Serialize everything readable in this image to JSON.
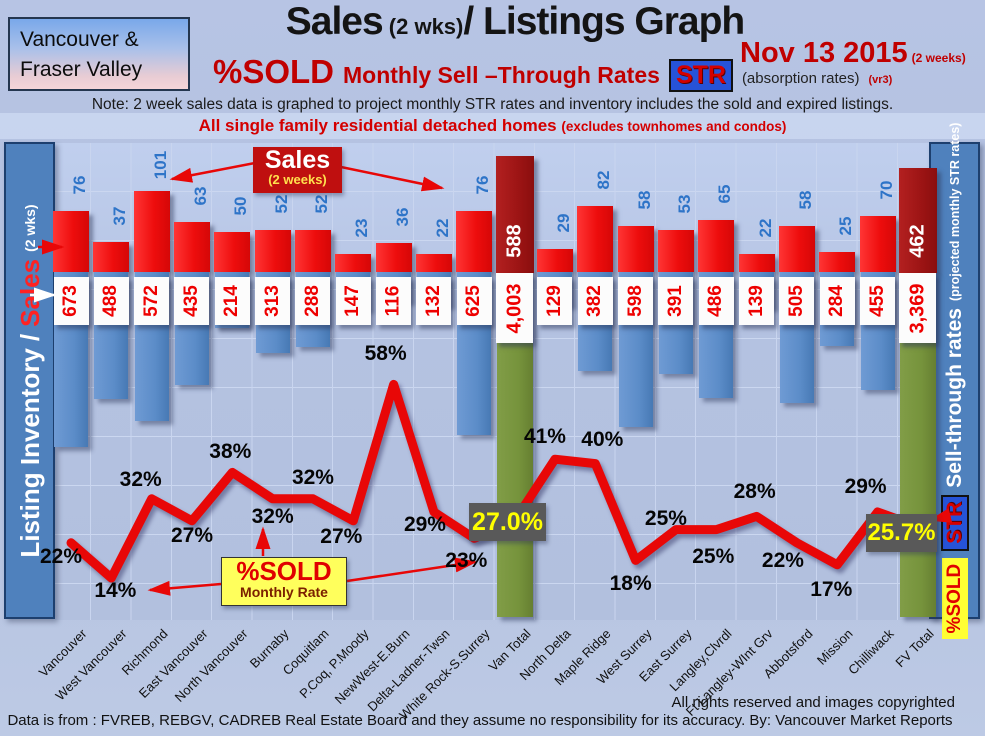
{
  "header": {
    "region_line1": "Vancouver &",
    "region_line2": "Fraser Valley",
    "title_main": "Sales",
    "title_sub": " (2 wks)",
    "title_rest": "/ Listings Graph",
    "date": "Nov 13 2015",
    "date_note": "(2 weeks)",
    "subtitle_pct": "%SOLD",
    "subtitle_text": "Monthly Sell –Through Rates",
    "subtitle_badge": "STR",
    "subtitle_tail": "(absorption rates)",
    "subtitle_ver": "(vr3)",
    "note": "Note: 2 week sales data is graphed to project monthly STR rates and inventory includes the sold and expired listings.",
    "scope_line": "All single family residential detached homes",
    "scope_paren": "(excludes townhomes and condos)"
  },
  "left_axis": {
    "label_main": "Listing Inventory",
    "label_sep": "/",
    "label_sales": "Sales",
    "label_note": "(2  wks)"
  },
  "right_axis": {
    "badge_sold": "%SOLD",
    "badge_str": "STR",
    "label_main": "Sell-through rates",
    "label_note": "(projected monthly STR rates)"
  },
  "annotations": {
    "sales_callout_title": "Sales",
    "sales_callout_sub": "(2 weeks)",
    "pct_callout_title": "%SOLD",
    "pct_callout_sub": "Monthly Rate",
    "van_total_pct": "27.0%",
    "fv_total_pct": "25.7%"
  },
  "footer": {
    "rights": "All rights reserved and  images copyrighted",
    "source": "Data is from : FVREB, REBGV, CADREB Real Estate Board and they assume no responsibility for its accuracy. By: Vancouver Market Reports"
  },
  "colors": {
    "sales_bar": "#ee0d0d",
    "inventory_bar": "#5b8cc8",
    "total_sales_bar": "#9c1414",
    "total_inventory_bar": "#76933c",
    "line": "#e80707",
    "sidebar": "#4f81bd",
    "accent_red": "#c00000",
    "badge_yellow": "#ffff33",
    "badge_blue": "#2653d8",
    "dark_label_box": "#595959"
  },
  "chart_data": {
    "type": "combo-bar-line",
    "title": "Sales (2 wks)/ Listings Graph",
    "left_axis_label": "Listing Inventory / Sales (2 wks)",
    "right_axis_label": "Sell-through rates (projected monthly STR rates)",
    "grid": true,
    "categories": [
      "Vancouver",
      "West Vancouver",
      "Richmond",
      "East Vancouver",
      "North Vancouver",
      "Burnaby",
      "Coquitlam",
      "P.Coq, P.Moody",
      "NewWest-E.Burn",
      "Delta-Ladner-Twsn",
      "White Rock-S.Surrey",
      "Van Total",
      "North Delta",
      "Maple Ridge",
      "West Surrey",
      "East Surrey",
      "Langley,Clvrdl",
      "Ft Langley-WInt Grv",
      "Abbotsford",
      "Mission",
      "Chilliwack",
      "FV Total"
    ],
    "series": [
      {
        "name": "Sales (2 weeks)",
        "type": "bar",
        "values": [
          76,
          37,
          101,
          63,
          50,
          52,
          52,
          23,
          36,
          22,
          76,
          588,
          29,
          82,
          58,
          53,
          65,
          22,
          58,
          25,
          70,
          462
        ]
      },
      {
        "name": "Listing Inventory",
        "type": "bar-down",
        "values": [
          673,
          488,
          572,
          435,
          214,
          313,
          288,
          147,
          116,
          132,
          625,
          4003,
          129,
          382,
          598,
          391,
          486,
          139,
          505,
          284,
          455,
          3369
        ]
      },
      {
        "name": "%SOLD Monthly Sell-Through Rate",
        "type": "line",
        "values": [
          22,
          14,
          32,
          27,
          38,
          32,
          32,
          27,
          58,
          29,
          23,
          27.0,
          41,
          40,
          18,
          25,
          25,
          28,
          22,
          17,
          29,
          25.7
        ]
      }
    ],
    "inventory_display": [
      "673",
      "488",
      "572",
      "435",
      "214",
      "313",
      "288",
      "147",
      "116",
      "132",
      "625",
      "4,003",
      "129",
      "382",
      "598",
      "391",
      "486",
      "139",
      "505",
      "284",
      "455",
      "3,369"
    ],
    "pct_display": [
      "22%",
      "14%",
      "32%",
      "27%",
      "38%",
      "32%",
      "32%",
      "27%",
      "58%",
      "29%",
      "23%",
      "27.0%",
      "41%",
      "40%",
      "18%",
      "25%",
      "25%",
      "28%",
      "22%",
      "17%",
      "29%",
      "25.7%"
    ],
    "total_indices": [
      11,
      21
    ]
  }
}
